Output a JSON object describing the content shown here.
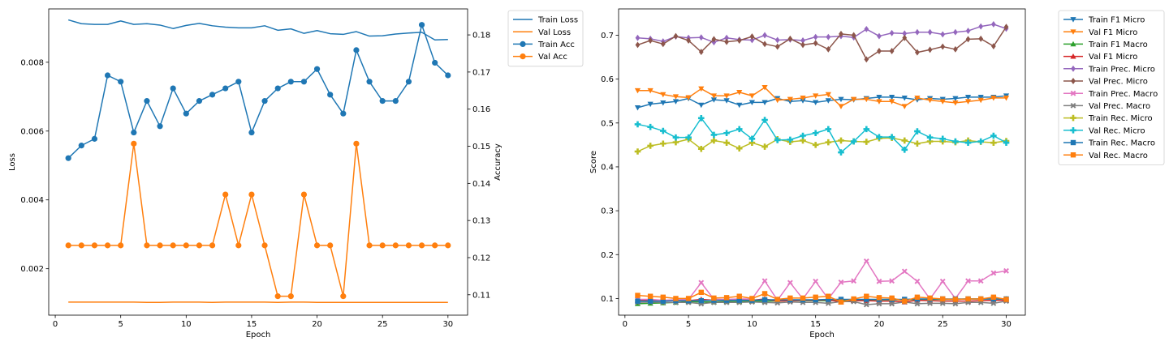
{
  "chart_data": [
    {
      "type": "line",
      "title": "",
      "xlabel": "Epoch",
      "ylabel": "Loss",
      "y2label": "Accuracy",
      "xlim": [
        -0.5,
        31.5
      ],
      "ylim": [
        0.00065,
        0.00955
      ],
      "y2lim": [
        0.1045,
        0.187
      ],
      "x_ticks": [
        0,
        5,
        10,
        15,
        20,
        25,
        30
      ],
      "y_ticks": [
        0.002,
        0.004,
        0.006,
        0.008
      ],
      "y_tick_labels": [
        "0.002",
        "0.004",
        "0.006",
        "0.008"
      ],
      "y2_ticks": [
        0.11,
        0.12,
        0.13,
        0.14,
        0.15,
        0.16,
        0.17,
        0.18
      ],
      "y2_tick_labels": [
        "0.11",
        "0.12",
        "0.13",
        "0.14",
        "0.15",
        "0.16",
        "0.17",
        "0.18"
      ],
      "legend_position": "outside-top-right",
      "grid": false,
      "x": [
        1,
        2,
        3,
        4,
        5,
        6,
        7,
        8,
        9,
        10,
        11,
        12,
        13,
        14,
        15,
        16,
        17,
        18,
        19,
        20,
        21,
        22,
        23,
        24,
        25,
        26,
        27,
        28,
        29,
        30
      ],
      "series": [
        {
          "name": "Train Loss",
          "axis": "left",
          "marker": "none",
          "color": "#1f77b4",
          "values": [
            0.00923,
            0.00912,
            0.0091,
            0.0091,
            0.0092,
            0.0091,
            0.00912,
            0.00908,
            0.00898,
            0.00907,
            0.00913,
            0.00906,
            0.00902,
            0.009,
            0.009,
            0.00906,
            0.00893,
            0.00897,
            0.00884,
            0.00892,
            0.00883,
            0.00881,
            0.00889,
            0.00876,
            0.00877,
            0.00882,
            0.00885,
            0.00887,
            0.00865,
            0.00866
          ]
        },
        {
          "name": "Val Loss",
          "axis": "left",
          "marker": "none",
          "color": "#ff7f0e",
          "values": [
            0.00103,
            0.00103,
            0.00103,
            0.00103,
            0.00103,
            0.00103,
            0.00102,
            0.00102,
            0.00103,
            0.00103,
            0.00103,
            0.00102,
            0.00103,
            0.00103,
            0.00103,
            0.00103,
            0.00102,
            0.00103,
            0.00103,
            0.00102,
            0.00102,
            0.00102,
            0.00102,
            0.00102,
            0.00102,
            0.00102,
            0.00102,
            0.00102,
            0.00102,
            0.00102
          ]
        },
        {
          "name": "Train Acc",
          "axis": "right",
          "marker": "circle",
          "color": "#1f77b4",
          "values": [
            0.1468,
            0.1502,
            0.152,
            0.1691,
            0.1674,
            0.1537,
            0.1622,
            0.1554,
            0.1656,
            0.1588,
            0.1622,
            0.1639,
            0.1656,
            0.1674,
            0.1537,
            0.1622,
            0.1656,
            0.1674,
            0.1674,
            0.1708,
            0.1639,
            0.1588,
            0.1759,
            0.1674,
            0.1622,
            0.1622,
            0.1674,
            0.1827,
            0.1725,
            0.1691
          ]
        },
        {
          "name": "Val Acc",
          "axis": "right",
          "marker": "circle",
          "color": "#ff7f0e",
          "values": [
            0.1233,
            0.1233,
            0.1233,
            0.1233,
            0.1233,
            0.1507,
            0.1233,
            0.1233,
            0.1233,
            0.1233,
            0.1233,
            0.1233,
            0.137,
            0.1233,
            0.137,
            0.1233,
            0.1096,
            0.1096,
            0.137,
            0.1233,
            0.1233,
            0.1096,
            0.1507,
            0.1233,
            0.1233,
            0.1233,
            0.1233,
            0.1233,
            0.1233,
            0.1233
          ]
        }
      ]
    },
    {
      "type": "line",
      "title": "",
      "xlabel": "Epoch",
      "ylabel": "Score",
      "xlim": [
        -0.5,
        31.5
      ],
      "ylim": [
        0.062,
        0.76
      ],
      "x_ticks": [
        0,
        5,
        10,
        15,
        20,
        25,
        30
      ],
      "y_ticks": [
        0.1,
        0.2,
        0.3,
        0.4,
        0.5,
        0.6,
        0.7
      ],
      "y_tick_labels": [
        "0.1",
        "0.2",
        "0.3",
        "0.4",
        "0.5",
        "0.6",
        "0.7"
      ],
      "legend_position": "outside-top-right",
      "grid": false,
      "x": [
        1,
        2,
        3,
        4,
        5,
        6,
        7,
        8,
        9,
        10,
        11,
        12,
        13,
        14,
        15,
        16,
        17,
        18,
        19,
        20,
        21,
        22,
        23,
        24,
        25,
        26,
        27,
        28,
        29,
        30
      ],
      "series": [
        {
          "name": "Train F1 Micro",
          "marker": "tri-down",
          "color": "#1f77b4",
          "values": [
            0.535,
            0.543,
            0.546,
            0.549,
            0.556,
            0.541,
            0.553,
            0.551,
            0.541,
            0.547,
            0.547,
            0.556,
            0.549,
            0.551,
            0.547,
            0.551,
            0.554,
            0.553,
            0.556,
            0.559,
            0.559,
            0.557,
            0.553,
            0.556,
            0.554,
            0.556,
            0.559,
            0.559,
            0.559,
            0.562
          ]
        },
        {
          "name": "Val F1 Micro",
          "marker": "tri-down",
          "color": "#ff7f0e",
          "values": [
            0.574,
            0.574,
            0.565,
            0.56,
            0.558,
            0.578,
            0.562,
            0.562,
            0.57,
            0.562,
            0.581,
            0.552,
            0.554,
            0.557,
            0.562,
            0.565,
            0.538,
            0.554,
            0.554,
            0.549,
            0.549,
            0.538,
            0.557,
            0.552,
            0.549,
            0.546,
            0.549,
            0.552,
            0.557,
            0.557
          ]
        },
        {
          "name": "Train F1 Macro",
          "marker": "tri-up",
          "color": "#2ca02c",
          "values": [
            0.088,
            0.089,
            0.09,
            0.091,
            0.093,
            0.092,
            0.092,
            0.093,
            0.093,
            0.094,
            0.094,
            0.094,
            0.095,
            0.095,
            0.095,
            0.095,
            0.096,
            0.096,
            0.097,
            0.097,
            0.097,
            0.097,
            0.098,
            0.098,
            0.098,
            0.098,
            0.099,
            0.099,
            0.099,
            0.099
          ]
        },
        {
          "name": "Val F1 Micro",
          "marker": "tri-up",
          "color": "#d62728",
          "values": [
            0.096,
            0.096,
            0.095,
            0.095,
            0.095,
            0.098,
            0.096,
            0.096,
            0.097,
            0.096,
            0.099,
            0.094,
            0.095,
            0.096,
            0.096,
            0.097,
            0.092,
            0.095,
            0.095,
            0.094,
            0.094,
            0.092,
            0.096,
            0.095,
            0.094,
            0.094,
            0.094,
            0.095,
            0.096,
            0.096
          ]
        },
        {
          "name": "Train Prec. Micro",
          "marker": "diamond",
          "color": "#9467bd",
          "values": [
            0.694,
            0.692,
            0.686,
            0.697,
            0.694,
            0.695,
            0.684,
            0.694,
            0.69,
            0.689,
            0.7,
            0.689,
            0.69,
            0.688,
            0.696,
            0.696,
            0.698,
            0.695,
            0.714,
            0.698,
            0.705,
            0.704,
            0.707,
            0.707,
            0.702,
            0.707,
            0.71,
            0.72,
            0.725,
            0.715
          ]
        },
        {
          "name": "Val Prec. Micro",
          "marker": "diamond",
          "color": "#8c564b",
          "values": [
            0.678,
            0.688,
            0.68,
            0.698,
            0.688,
            0.662,
            0.691,
            0.685,
            0.688,
            0.697,
            0.68,
            0.674,
            0.692,
            0.678,
            0.682,
            0.668,
            0.703,
            0.7,
            0.645,
            0.664,
            0.664,
            0.694,
            0.661,
            0.667,
            0.674,
            0.668,
            0.691,
            0.692,
            0.675,
            0.719
          ]
        },
        {
          "name": "Train Prec. Macro",
          "marker": "x",
          "color": "#e377c2",
          "values": [
            0.098,
            0.098,
            0.096,
            0.097,
            0.098,
            0.136,
            0.098,
            0.098,
            0.099,
            0.099,
            0.14,
            0.096,
            0.136,
            0.099,
            0.139,
            0.099,
            0.137,
            0.14,
            0.185,
            0.139,
            0.14,
            0.162,
            0.139,
            0.099,
            0.139,
            0.1,
            0.14,
            0.14,
            0.158,
            0.163
          ]
        },
        {
          "name": "Val Prec. Macro",
          "marker": "x",
          "color": "#7f7f7f",
          "values": [
            0.091,
            0.092,
            0.091,
            0.091,
            0.091,
            0.088,
            0.091,
            0.091,
            0.091,
            0.092,
            0.091,
            0.09,
            0.092,
            0.091,
            0.091,
            0.089,
            0.093,
            0.093,
            0.086,
            0.088,
            0.088,
            0.092,
            0.088,
            0.089,
            0.089,
            0.088,
            0.091,
            0.091,
            0.089,
            0.094
          ]
        },
        {
          "name": "Train Rec. Micro",
          "marker": "plus",
          "color": "#bcbd22",
          "values": [
            0.435,
            0.448,
            0.453,
            0.456,
            0.463,
            0.441,
            0.46,
            0.455,
            0.442,
            0.455,
            0.446,
            0.463,
            0.457,
            0.46,
            0.45,
            0.456,
            0.46,
            0.458,
            0.457,
            0.465,
            0.466,
            0.46,
            0.453,
            0.458,
            0.458,
            0.456,
            0.46,
            0.457,
            0.455,
            0.459
          ]
        },
        {
          "name": "Val Rec. Micro",
          "marker": "plus",
          "color": "#17becf",
          "values": [
            0.497,
            0.491,
            0.482,
            0.467,
            0.467,
            0.511,
            0.473,
            0.477,
            0.486,
            0.464,
            0.507,
            0.461,
            0.462,
            0.471,
            0.477,
            0.486,
            0.433,
            0.458,
            0.486,
            0.468,
            0.468,
            0.439,
            0.481,
            0.467,
            0.464,
            0.458,
            0.455,
            0.458,
            0.471,
            0.455
          ]
        },
        {
          "name": "Train Rec. Macro",
          "marker": "square",
          "color": "#1f77b4",
          "values": [
            0.094,
            0.094,
            0.094,
            0.095,
            0.095,
            0.095,
            0.096,
            0.096,
            0.096,
            0.096,
            0.097,
            0.097,
            0.097,
            0.097,
            0.097,
            0.098,
            0.098,
            0.098,
            0.098,
            0.098,
            0.098,
            0.098,
            0.099,
            0.099,
            0.099,
            0.099,
            0.099,
            0.099,
            0.099,
            0.099
          ]
        },
        {
          "name": "Val Rec. Macro",
          "marker": "square",
          "color": "#ff7f0e",
          "values": [
            0.107,
            0.105,
            0.103,
            0.1,
            0.1,
            0.114,
            0.101,
            0.102,
            0.105,
            0.1,
            0.111,
            0.098,
            0.101,
            0.101,
            0.103,
            0.105,
            0.092,
            0.099,
            0.105,
            0.102,
            0.101,
            0.094,
            0.103,
            0.101,
            0.099,
            0.098,
            0.099,
            0.099,
            0.103,
            0.098
          ]
        }
      ]
    }
  ]
}
